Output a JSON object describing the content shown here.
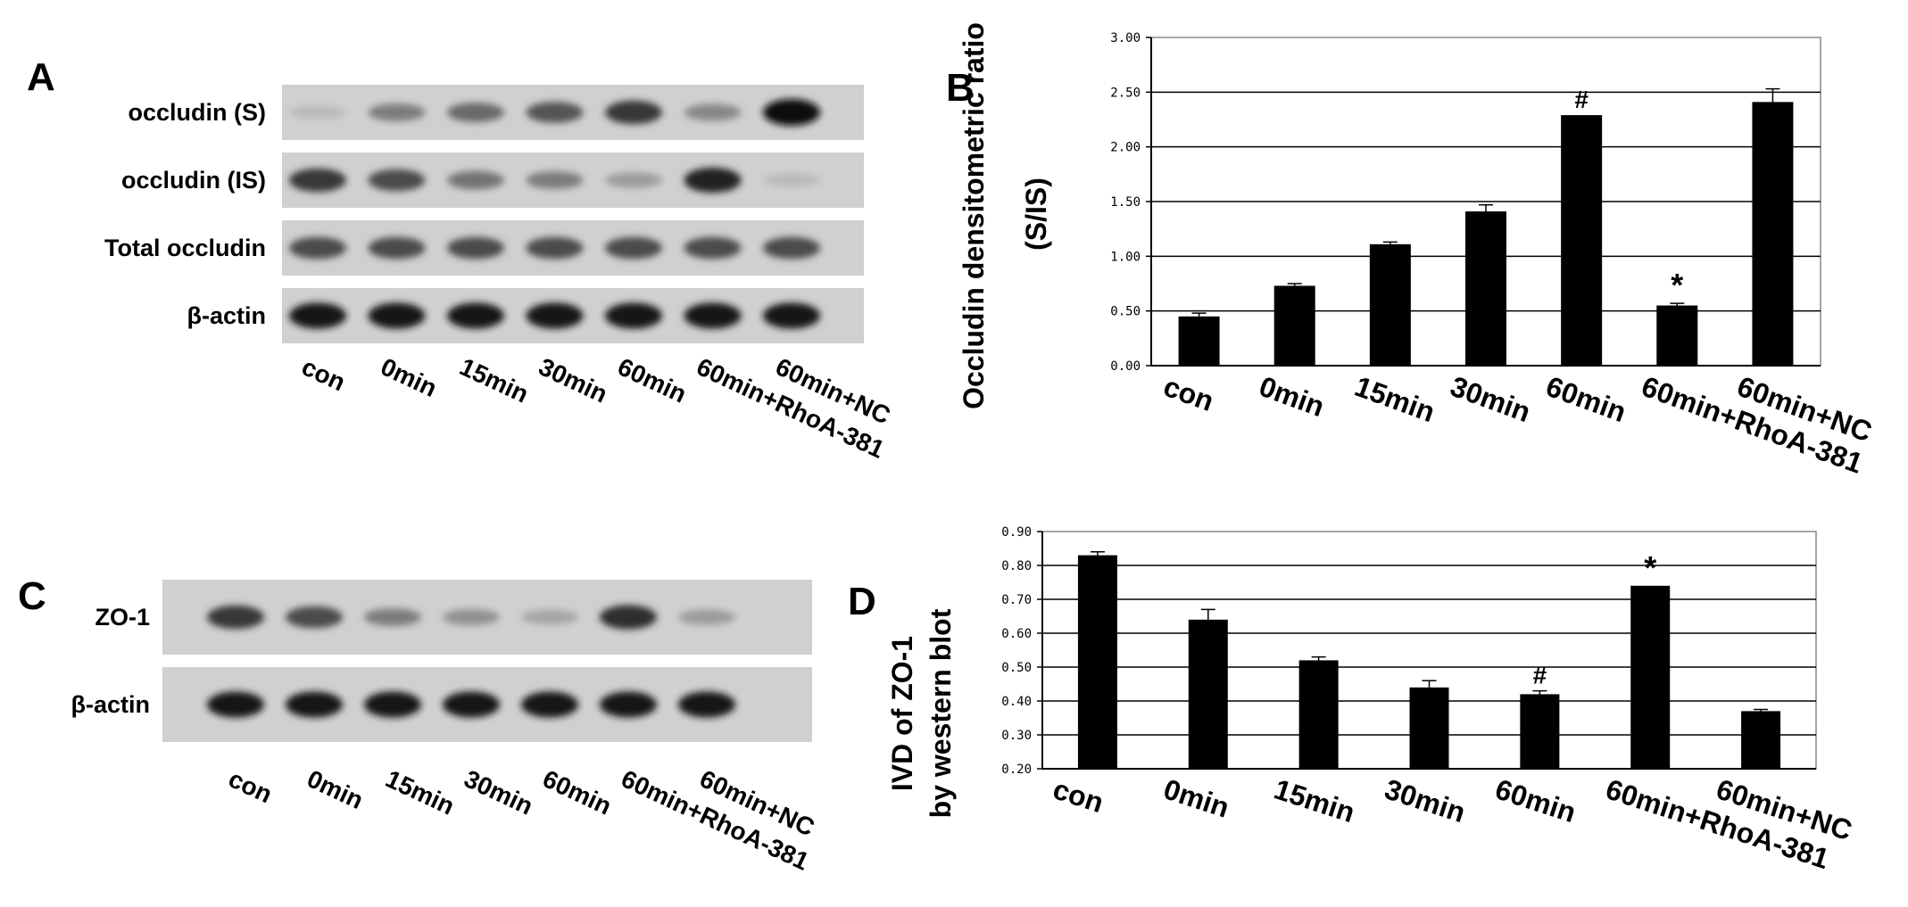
{
  "panels": {
    "A": {
      "letter": "A",
      "rows": [
        "occludin (S)",
        "occludin (IS)",
        "Total occludin",
        "β-actin"
      ],
      "lanes": [
        "con",
        "0min",
        "15min",
        "30min",
        "60min",
        "60min+RhoA-381",
        "60min+NC"
      ],
      "intensity": [
        [
          0.15,
          0.45,
          0.55,
          0.65,
          0.8,
          0.4,
          1.0
        ],
        [
          0.8,
          0.7,
          0.5,
          0.45,
          0.3,
          0.9,
          0.15
        ],
        [
          0.7,
          0.7,
          0.7,
          0.7,
          0.7,
          0.7,
          0.7
        ],
        [
          0.95,
          0.95,
          0.95,
          0.95,
          0.95,
          0.95,
          0.95
        ]
      ]
    },
    "C": {
      "letter": "C",
      "rows": [
        "ZO-1",
        "β-actin"
      ],
      "lanes": [
        "con",
        "0min",
        "15min",
        "30min",
        "60min",
        "60min+RhoA-381",
        "60min+NC"
      ],
      "intensity": [
        [
          0.8,
          0.7,
          0.45,
          0.35,
          0.25,
          0.85,
          0.3
        ],
        [
          0.95,
          0.95,
          0.95,
          0.95,
          0.95,
          0.95,
          0.95
        ]
      ]
    }
  },
  "chart_data": [
    {
      "panel": "B",
      "type": "bar",
      "letter": "B",
      "ylabel_line1": "Occludin densitometric ratio",
      "ylabel_line2": "(S/IS)",
      "categories": [
        "con",
        "0min",
        "15min",
        "30min",
        "60min",
        "60min+RhoA-381",
        "60min+NC"
      ],
      "values": [
        0.45,
        0.73,
        1.11,
        1.41,
        2.29,
        0.55,
        2.41
      ],
      "errors": [
        0.03,
        0.02,
        0.02,
        0.06,
        0.0,
        0.02,
        0.12
      ],
      "markers": [
        "",
        "",
        "",
        "",
        "#",
        "*",
        ""
      ],
      "ylim": [
        0,
        3
      ],
      "yticks": [
        "0.00",
        "0.50",
        "1.00",
        "1.50",
        "2.00",
        "2.50",
        "3.00"
      ],
      "grid": true
    },
    {
      "panel": "D",
      "type": "bar",
      "letter": "D",
      "ylabel_line1": "IVD of ZO-1",
      "ylabel_line2": "by western blot",
      "categories": [
        "con",
        "0min",
        "15min",
        "30min",
        "60min",
        "60min+RhoA-381",
        "60min+NC"
      ],
      "values": [
        0.83,
        0.64,
        0.52,
        0.44,
        0.42,
        0.74,
        0.37
      ],
      "errors": [
        0.01,
        0.03,
        0.01,
        0.02,
        0.01,
        0.0,
        0.005
      ],
      "markers": [
        "",
        "",
        "",
        "",
        "#",
        "*",
        ""
      ],
      "ylim": [
        0.2,
        0.9
      ],
      "yticks": [
        "0.20",
        "0.30",
        "0.40",
        "0.50",
        "0.60",
        "0.70",
        "0.80",
        "0.90"
      ],
      "grid": true
    }
  ]
}
